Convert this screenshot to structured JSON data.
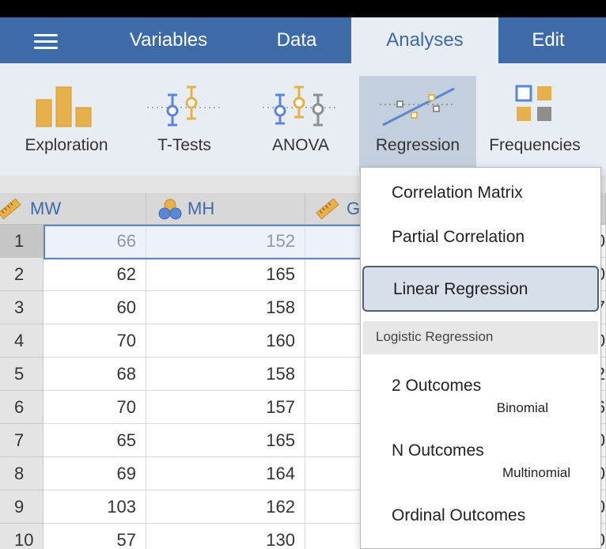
{
  "tabs": [
    {
      "label": "Variables"
    },
    {
      "label": "Data"
    },
    {
      "label": "Analyses"
    },
    {
      "label": "Edit"
    }
  ],
  "active_tab": "Analyses",
  "ribbon": {
    "items": [
      {
        "label": "Exploration",
        "icon": "bar-chart-icon"
      },
      {
        "label": "T-Tests",
        "icon": "t-test-icon"
      },
      {
        "label": "ANOVA",
        "icon": "anova-icon"
      },
      {
        "label": "Regression",
        "icon": "regression-icon"
      },
      {
        "label": "Frequencies",
        "icon": "frequencies-icon"
      }
    ],
    "active": "Regression"
  },
  "grid": {
    "columns": [
      {
        "name": "MW",
        "icon": "ruler-icon"
      },
      {
        "name": "MH",
        "icon": "nominal-circles-icon"
      },
      {
        "name": "G",
        "icon": "ruler-icon"
      }
    ],
    "rows": [
      {
        "n": "1",
        "mw": "66",
        "mh": "152"
      },
      {
        "n": "2",
        "mw": "62",
        "mh": "165"
      },
      {
        "n": "3",
        "mw": "60",
        "mh": "158"
      },
      {
        "n": "4",
        "mw": "70",
        "mh": "160"
      },
      {
        "n": "5",
        "mw": "68",
        "mh": "158"
      },
      {
        "n": "6",
        "mw": "70",
        "mh": "157"
      },
      {
        "n": "7",
        "mw": "65",
        "mh": "165"
      },
      {
        "n": "8",
        "mw": "69",
        "mh": "164"
      },
      {
        "n": "9",
        "mw": "103",
        "mh": "162"
      },
      {
        "n": "10",
        "mw": "57",
        "mh": "130"
      }
    ],
    "right_edge_chars": [
      "0",
      "0",
      "7",
      "0",
      "2",
      "6",
      "0",
      "0",
      "0",
      "0"
    ]
  },
  "menu": {
    "correlation_matrix": "Correlation Matrix",
    "partial_correlation": "Partial Correlation",
    "linear_regression": "Linear Regression",
    "logistic_heading": "Logistic Regression",
    "two_outcomes": "2 Outcomes",
    "two_outcomes_sub": "Binomial",
    "n_outcomes": "N Outcomes",
    "n_outcomes_sub": "Multinomial",
    "ordinal_outcomes": "Ordinal Outcomes"
  },
  "colors": {
    "header_blue": "#3d6ba8",
    "ribbon_bg": "#e8edf4",
    "icon_gold": "#e8b04a",
    "icon_blue": "#5b86d6",
    "icon_gray": "#8e8e8e"
  }
}
